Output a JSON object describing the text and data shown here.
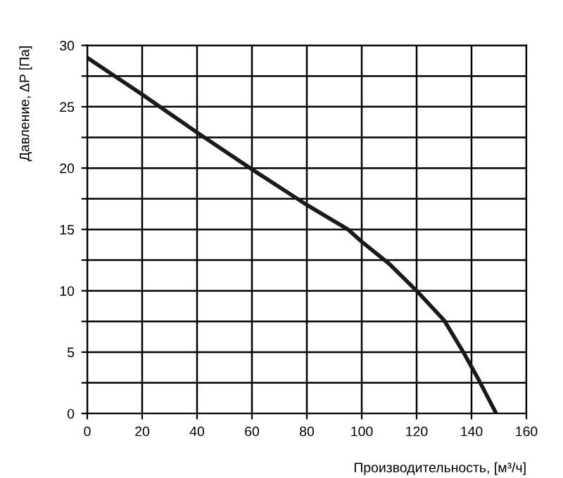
{
  "chart_data": {
    "type": "line",
    "xlabel": "Производительность, [м³/ч]",
    "ylabel": "Давление, ΔP [Па]",
    "x": [
      0,
      10,
      20,
      40,
      60,
      80,
      95,
      100,
      110,
      120,
      130,
      137,
      142,
      149
    ],
    "series": [
      {
        "color": "#1a1a1a",
        "values": [
          29,
          27.5,
          26,
          22.9,
          19.9,
          17,
          15,
          14,
          12.2,
          10,
          7.6,
          5,
          3,
          0
        ]
      }
    ],
    "xlim": [
      0,
      160
    ],
    "xticks": [
      0,
      20,
      40,
      60,
      80,
      100,
      120,
      140,
      160
    ],
    "ylim": [
      0,
      30
    ],
    "yticks": [
      0,
      {
        "value": 2.5,
        "label": null
      },
      5,
      {
        "value": 7.5,
        "label": null
      },
      10,
      {
        "value": 12.5,
        "label": null
      },
      15,
      {
        "value": 17.5,
        "label": null
      },
      20,
      {
        "value": 22.5,
        "label": null
      },
      25,
      {
        "value": 27.5,
        "label": null
      },
      30
    ],
    "grid": true,
    "marker": "none",
    "line_style": "solid"
  }
}
